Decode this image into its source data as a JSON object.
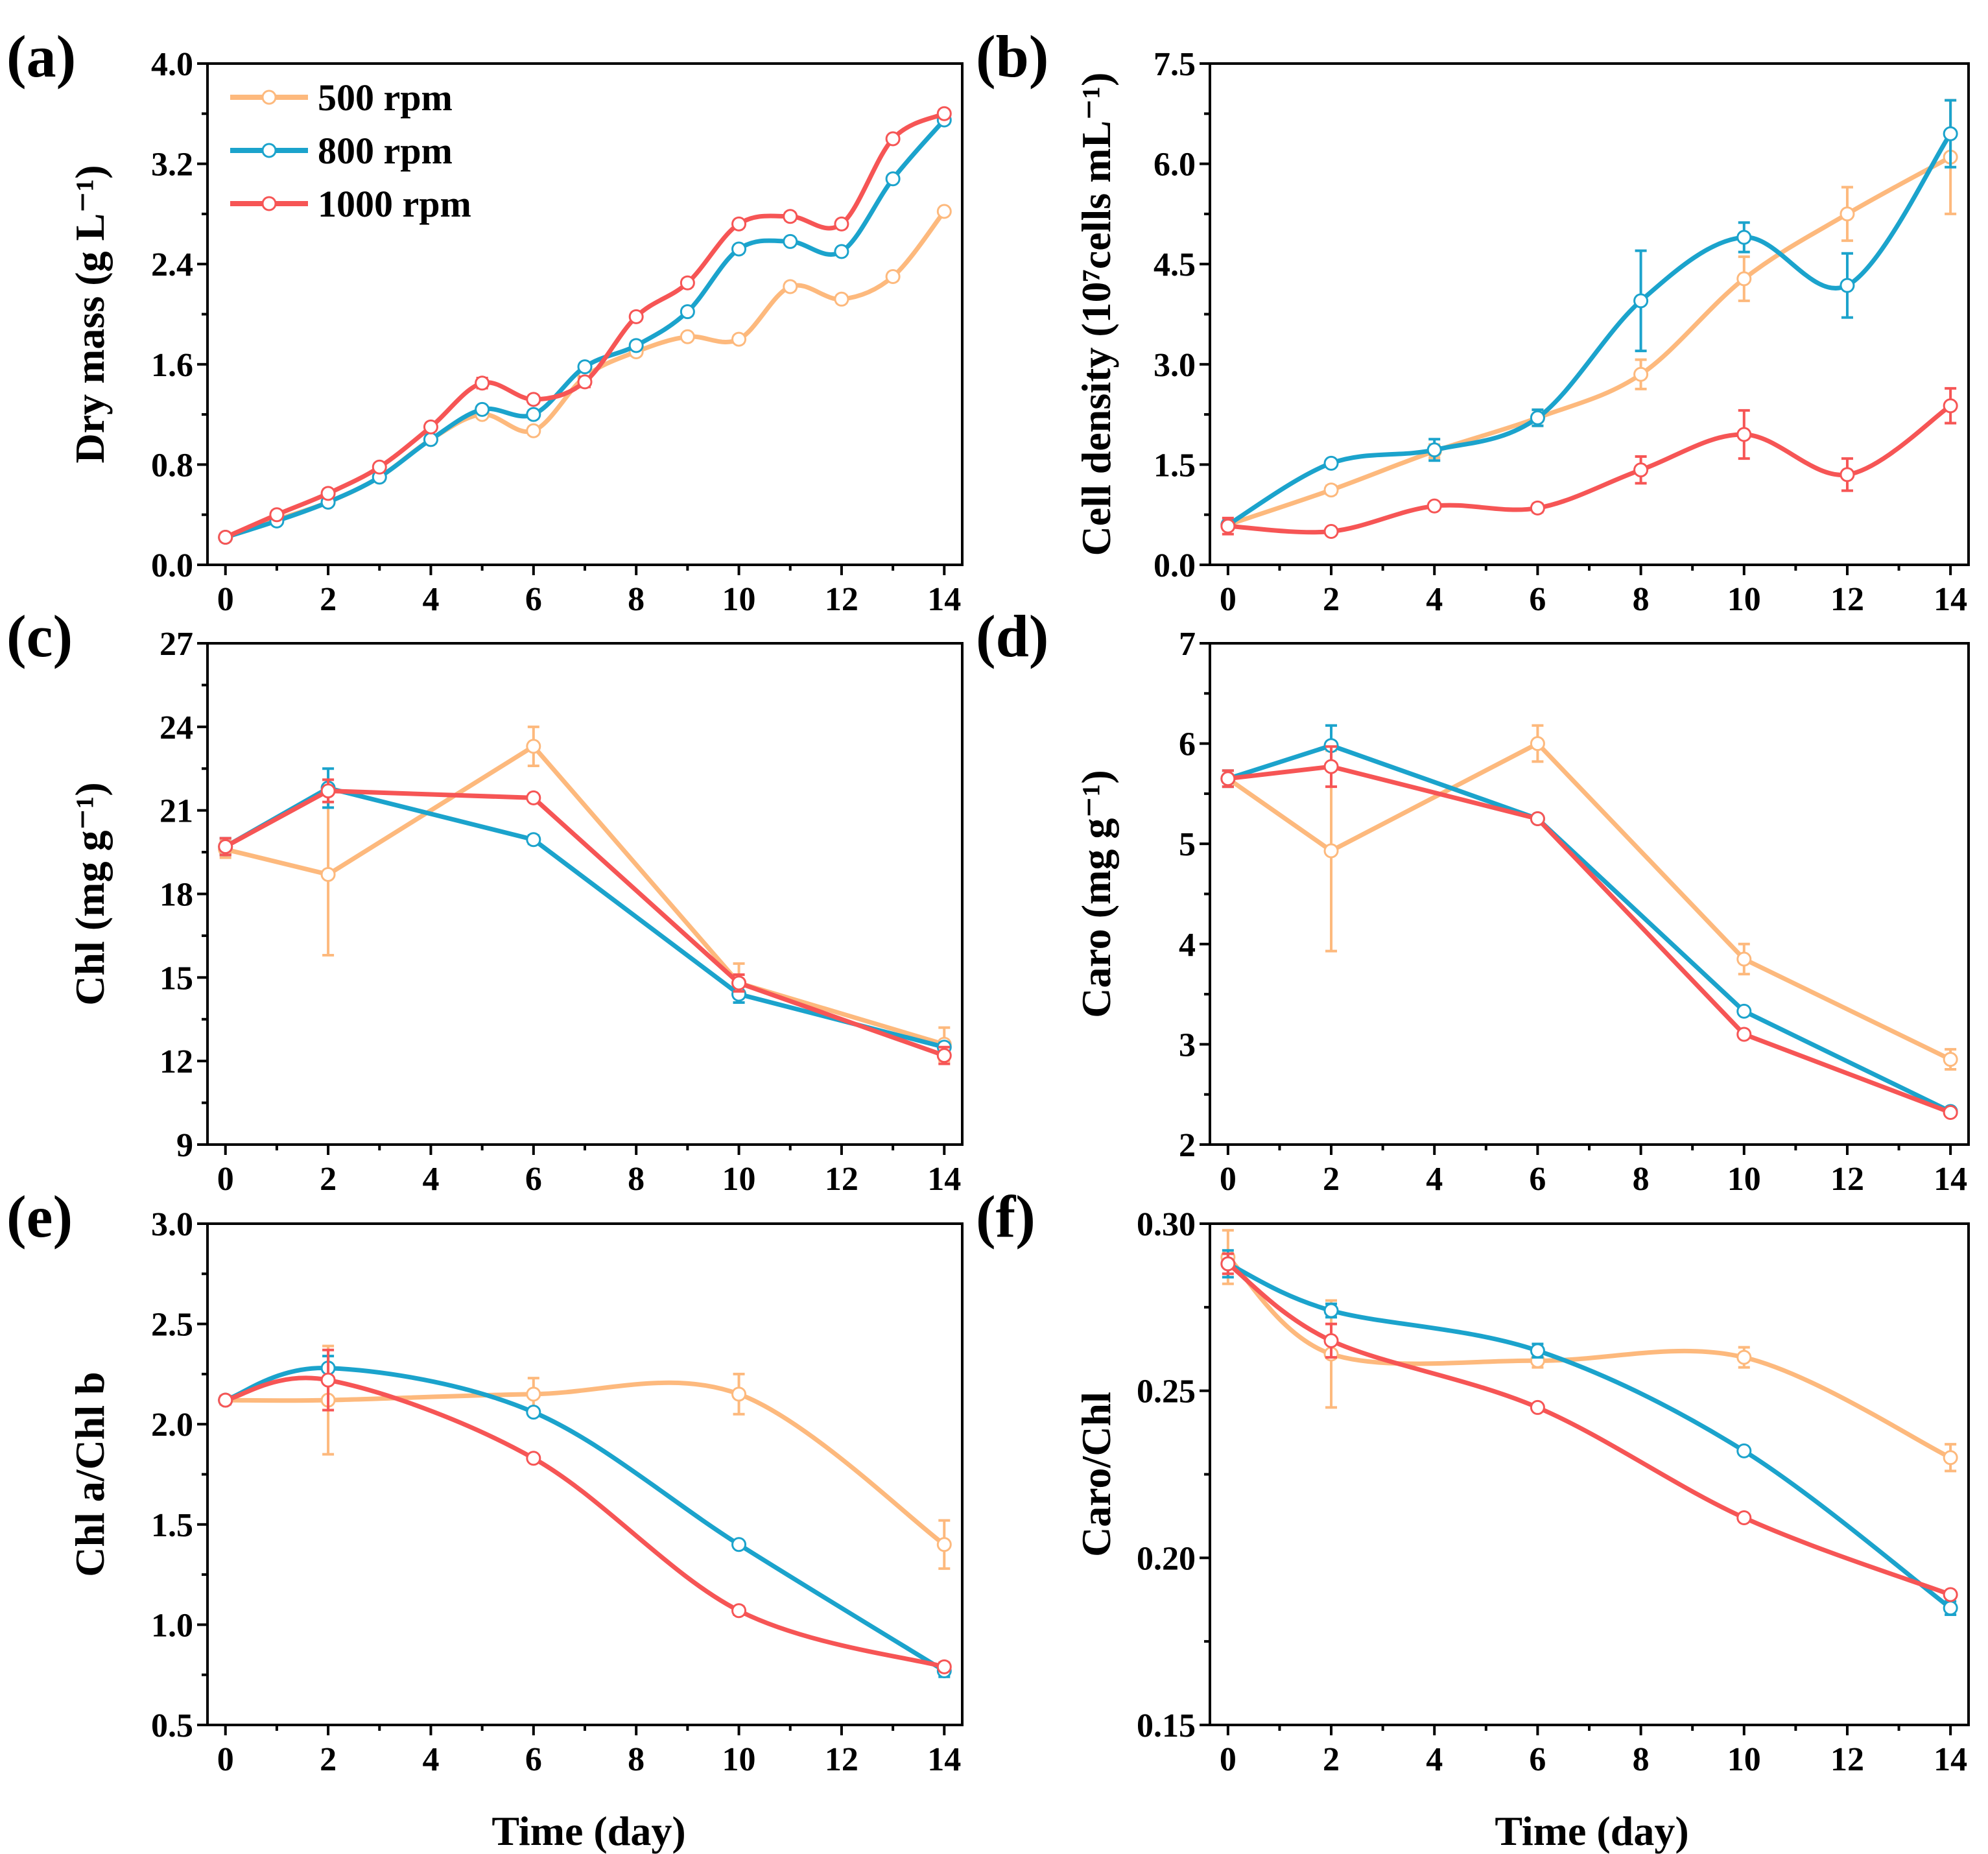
{
  "colors": {
    "500 rpm": "#fdb97d",
    "800 rpm": "#1ba3cc",
    "1000 rpm": "#f65555"
  },
  "legend": [
    "500 rpm",
    "800 rpm",
    "1000 rpm"
  ],
  "xlabel": "Time (day)",
  "chart_data": [
    {
      "id": "a",
      "panel_label": "(a)",
      "type": "line",
      "ylabel": "Dry mass (g L⁻¹)",
      "xlim": [
        0,
        14
      ],
      "ylim": [
        0,
        4
      ],
      "yticks": [
        "0.0",
        "0.8",
        "1.6",
        "2.4",
        "3.2",
        "4.0"
      ],
      "xticks": [
        "0",
        "2",
        "4",
        "6",
        "8",
        "10",
        "12",
        "14"
      ],
      "smooth": true,
      "x": [
        0,
        1,
        2,
        3,
        4,
        5,
        6,
        7,
        8,
        9,
        10,
        11,
        12,
        13,
        14
      ],
      "series": [
        {
          "name": "500 rpm",
          "values": [
            0.22,
            0.36,
            0.5,
            0.7,
            1.0,
            1.2,
            1.07,
            1.5,
            1.7,
            1.82,
            1.8,
            2.22,
            2.12,
            2.3,
            2.82
          ],
          "err": [
            0.02,
            0.02,
            0.02,
            0.02,
            0.02,
            0.02,
            0.03,
            0.02,
            0.03,
            0.02,
            0.03,
            0.03,
            0.03,
            0.03,
            0.02
          ]
        },
        {
          "name": "800 rpm",
          "values": [
            0.22,
            0.35,
            0.5,
            0.7,
            1.0,
            1.24,
            1.2,
            1.58,
            1.75,
            2.02,
            2.52,
            2.58,
            2.5,
            3.08,
            3.55
          ],
          "err": [
            0.02,
            0.02,
            0.02,
            0.03,
            0.03,
            0.02,
            0.03,
            0.03,
            0.03,
            0.03,
            0.03,
            0.02,
            0.01,
            0.01,
            0.03
          ]
        },
        {
          "name": "1000 rpm",
          "values": [
            0.22,
            0.4,
            0.57,
            0.78,
            1.1,
            1.45,
            1.32,
            1.46,
            1.98,
            2.25,
            2.72,
            2.78,
            2.72,
            3.4,
            3.6
          ],
          "err": [
            0.03,
            0.03,
            0.03,
            0.03,
            0.03,
            0.04,
            0.03,
            0.04,
            0.03,
            0.03,
            0.03,
            0.03,
            0.03,
            0.01,
            0.03
          ]
        }
      ]
    },
    {
      "id": "b",
      "panel_label": "(b)",
      "type": "line",
      "ylabel": "Cell density (10⁷cells mL⁻¹)",
      "xlim": [
        0,
        14
      ],
      "ylim": [
        0,
        7.5
      ],
      "yticks": [
        "0.0",
        "1.5",
        "3.0",
        "4.5",
        "6.0",
        "7.5"
      ],
      "xticks": [
        "0",
        "2",
        "4",
        "6",
        "8",
        "10",
        "12",
        "14"
      ],
      "smooth": true,
      "x": [
        0,
        2,
        4,
        6,
        8,
        10,
        12,
        14
      ],
      "series": [
        {
          "name": "500 rpm",
          "values": [
            0.6,
            1.12,
            1.7,
            2.2,
            2.85,
            4.28,
            5.25,
            6.1
          ],
          "err": [
            0.08,
            0.06,
            0.1,
            0.12,
            0.22,
            0.33,
            0.4,
            0.85
          ]
        },
        {
          "name": "800 rpm",
          "values": [
            0.6,
            1.52,
            1.72,
            2.2,
            3.95,
            4.9,
            4.18,
            6.45
          ],
          "err": [
            0.05,
            0.05,
            0.16,
            0.12,
            0.75,
            0.22,
            0.48,
            0.5
          ]
        },
        {
          "name": "1000 rpm",
          "values": [
            0.58,
            0.5,
            0.88,
            0.85,
            1.42,
            1.95,
            1.35,
            2.38
          ],
          "err": [
            0.12,
            0.05,
            0.05,
            0.06,
            0.2,
            0.36,
            0.24,
            0.26
          ]
        }
      ]
    },
    {
      "id": "c",
      "panel_label": "(c)",
      "type": "line",
      "ylabel": "Chl (mg g⁻¹)",
      "xlim": [
        0,
        14
      ],
      "ylim": [
        9,
        27
      ],
      "yticks": [
        "9",
        "12",
        "15",
        "18",
        "21",
        "24",
        "27"
      ],
      "xticks": [
        "0",
        "2",
        "4",
        "6",
        "8",
        "10",
        "12",
        "14"
      ],
      "smooth": false,
      "x": [
        0,
        2,
        6,
        10,
        14
      ],
      "series": [
        {
          "name": "500 rpm",
          "values": [
            19.6,
            18.7,
            23.3,
            14.8,
            12.6
          ],
          "err": [
            0.3,
            2.9,
            0.7,
            0.7,
            0.6
          ]
        },
        {
          "name": "800 rpm",
          "values": [
            19.7,
            21.8,
            19.95,
            14.4,
            12.5
          ],
          "err": [
            0.3,
            0.7,
            0.15,
            0.3,
            0.15
          ]
        },
        {
          "name": "1000 rpm",
          "values": [
            19.7,
            21.7,
            21.45,
            14.8,
            12.2
          ],
          "err": [
            0.3,
            0.4,
            0.1,
            0.3,
            0.3
          ]
        }
      ]
    },
    {
      "id": "d",
      "panel_label": "(d)",
      "type": "line",
      "ylabel": "Caro (mg g⁻¹)",
      "xlim": [
        0,
        14
      ],
      "ylim": [
        2,
        7
      ],
      "yticks": [
        "2",
        "3",
        "4",
        "5",
        "6",
        "7"
      ],
      "xticks": [
        "0",
        "2",
        "4",
        "6",
        "8",
        "10",
        "12",
        "14"
      ],
      "smooth": false,
      "x": [
        0,
        2,
        6,
        10,
        14
      ],
      "series": [
        {
          "name": "500 rpm",
          "values": [
            5.65,
            4.93,
            6.0,
            3.85,
            2.85
          ],
          "err": [
            0.08,
            1.0,
            0.18,
            0.15,
            0.1
          ]
        },
        {
          "name": "800 rpm",
          "values": [
            5.65,
            5.98,
            5.25,
            3.33,
            2.33
          ],
          "err": [
            0.08,
            0.2,
            0.03,
            0.03,
            0.03
          ]
        },
        {
          "name": "1000 rpm",
          "values": [
            5.65,
            5.77,
            5.25,
            3.1,
            2.32
          ],
          "err": [
            0.08,
            0.2,
            0.03,
            0.02,
            0.03
          ]
        }
      ]
    },
    {
      "id": "e",
      "panel_label": "(e)",
      "type": "line",
      "ylabel": "Chl a/Chl b",
      "xlim": [
        0,
        14
      ],
      "ylim": [
        0.5,
        3.0
      ],
      "yticks": [
        "0.5",
        "1.0",
        "1.5",
        "2.0",
        "2.5",
        "3.0"
      ],
      "xticks": [
        "0",
        "2",
        "4",
        "6",
        "8",
        "10",
        "12",
        "14"
      ],
      "smooth": true,
      "x": [
        0,
        2,
        6,
        10,
        14
      ],
      "series": [
        {
          "name": "500 rpm",
          "values": [
            2.12,
            2.12,
            2.15,
            2.15,
            1.4
          ],
          "err": [
            0.02,
            0.27,
            0.08,
            0.1,
            0.12
          ]
        },
        {
          "name": "800 rpm",
          "values": [
            2.12,
            2.28,
            2.06,
            1.4,
            0.77
          ],
          "err": [
            0.02,
            0.06,
            0.01,
            0.01,
            0.03
          ]
        },
        {
          "name": "1000 rpm",
          "values": [
            2.12,
            2.22,
            1.83,
            1.07,
            0.79
          ],
          "err": [
            0.02,
            0.15,
            0.01,
            0.02,
            0.02
          ]
        }
      ]
    },
    {
      "id": "f",
      "panel_label": "(f)",
      "type": "line",
      "ylabel": "Caro/Chl",
      "xlim": [
        0,
        14
      ],
      "ylim": [
        0.15,
        0.3
      ],
      "yticks": [
        "0.15",
        "0.20",
        "0.25",
        "0.30"
      ],
      "xticks": [
        "0",
        "2",
        "4",
        "6",
        "8",
        "10",
        "12",
        "14"
      ],
      "smooth": true,
      "x": [
        0,
        2,
        6,
        10,
        14
      ],
      "series": [
        {
          "name": "500 rpm",
          "values": [
            0.29,
            0.261,
            0.259,
            0.26,
            0.23
          ],
          "err": [
            0.008,
            0.016,
            0.002,
            0.003,
            0.004
          ]
        },
        {
          "name": "800 rpm",
          "values": [
            0.288,
            0.274,
            0.262,
            0.232,
            0.185
          ],
          "err": [
            0.004,
            0.002,
            0.002,
            0.001,
            0.002
          ]
        },
        {
          "name": "1000 rpm",
          "values": [
            0.288,
            0.265,
            0.245,
            0.212,
            0.189
          ],
          "err": [
            0.003,
            0.005,
            0.001,
            0.001,
            0.001
          ]
        }
      ]
    }
  ]
}
